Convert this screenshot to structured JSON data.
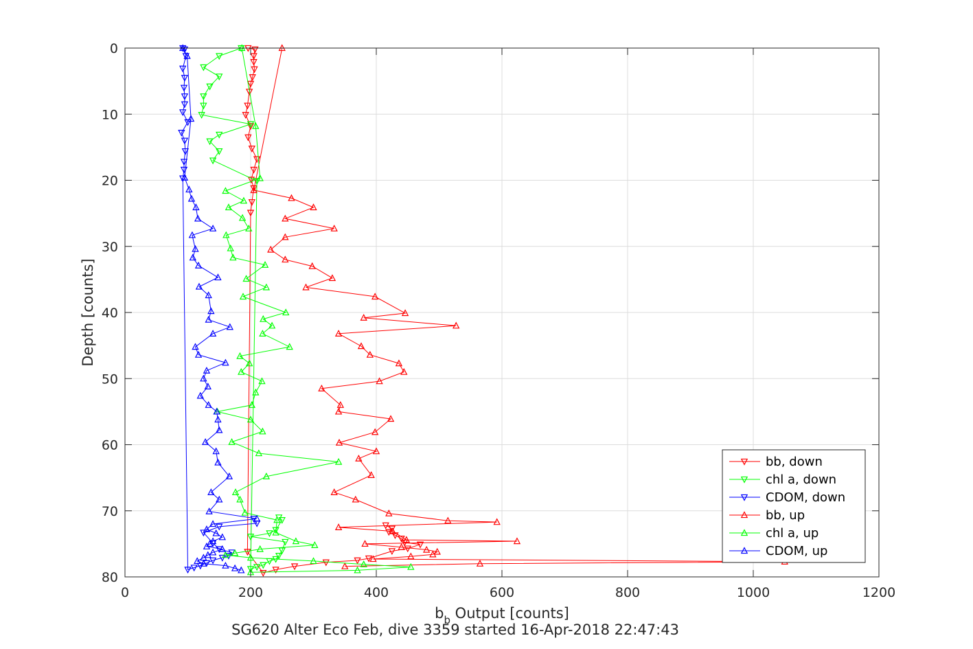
{
  "chart_data": {
    "type": "line",
    "xlabel_main": "b",
    "xlabel_sub": "b",
    "xlabel_rest": " Output [counts]",
    "ylabel": "Depth [counts]",
    "subtitle": "SG620 Alter Eco Feb, dive 3359 started 16-Apr-2018 22:47:43",
    "xlim": [
      0,
      1200
    ],
    "ylim": [
      0,
      80
    ],
    "y_reversed": true,
    "grid": true,
    "legend_position": "bottom-right",
    "xticks": [
      "0",
      "200",
      "400",
      "600",
      "800",
      "1000",
      "1200"
    ],
    "yticks": [
      "0",
      "10",
      "20",
      "30",
      "40",
      "50",
      "60",
      "70",
      "80"
    ],
    "series": [
      {
        "name": "bb, down",
        "color": "#ff0000",
        "marker": "triangle-down",
        "points": [
          [
            196,
            0
          ],
          [
            207,
            0.2
          ],
          [
            205,
            1.2
          ],
          [
            205,
            2.1
          ],
          [
            206,
            3.2
          ],
          [
            203,
            4.4
          ],
          [
            200,
            5.4
          ],
          [
            198,
            6.6
          ],
          [
            195,
            8.7
          ],
          [
            192,
            10.1
          ],
          [
            200,
            11.8
          ],
          [
            196,
            13.5
          ],
          [
            202,
            15.2
          ],
          [
            210,
            16.8
          ],
          [
            205,
            18.4
          ],
          [
            201,
            19.9
          ],
          [
            205,
            21.2
          ],
          [
            202,
            23.3
          ],
          [
            200,
            24.9
          ],
          [
            195,
            76.2
          ],
          [
            220,
            79.4
          ],
          [
            240,
            78.9
          ],
          [
            270,
            78.4
          ],
          [
            320,
            77.8
          ],
          [
            370,
            77.5
          ],
          [
            388,
            77.2
          ],
          [
            425,
            76.1
          ],
          [
            450,
            75.7
          ],
          [
            470,
            75.1
          ],
          [
            445,
            74.8
          ],
          [
            440,
            74.2
          ],
          [
            430,
            73.7
          ],
          [
            420,
            73.2
          ],
          [
            425,
            72.7
          ],
          [
            415,
            72.2
          ]
        ]
      },
      {
        "name": "chl a, down",
        "color": "#00ff00",
        "marker": "triangle-down",
        "points": [
          [
            185,
            0
          ],
          [
            150,
            1.2
          ],
          [
            125,
            2.9
          ],
          [
            150,
            4.3
          ],
          [
            135,
            5.8
          ],
          [
            125,
            7.3
          ],
          [
            125,
            8.7
          ],
          [
            122,
            10.1
          ],
          [
            200,
            11.5
          ],
          [
            150,
            13.1
          ],
          [
            135,
            14.1
          ],
          [
            150,
            15.6
          ],
          [
            140,
            17.0
          ],
          [
            210,
            20.1
          ],
          [
            200,
            78.8
          ],
          [
            210,
            78.5
          ],
          [
            220,
            78.2
          ],
          [
            230,
            77.6
          ],
          [
            240,
            77.3
          ],
          [
            245,
            76.8
          ],
          [
            250,
            76.0
          ],
          [
            255,
            74.7
          ],
          [
            200,
            73.9
          ],
          [
            230,
            73.4
          ],
          [
            240,
            72.9
          ],
          [
            250,
            71.4
          ],
          [
            245,
            71.0
          ]
        ]
      },
      {
        "name": "CDOM, down",
        "color": "#0000ff",
        "marker": "triangle-down",
        "points": [
          [
            92,
            0
          ],
          [
            95,
            0.2
          ],
          [
            97,
            1.2
          ],
          [
            92,
            3.1
          ],
          [
            95,
            4.5
          ],
          [
            94,
            6.0
          ],
          [
            95,
            7.3
          ],
          [
            95,
            8.5
          ],
          [
            92,
            9.7
          ],
          [
            100,
            11.2
          ],
          [
            90,
            12.8
          ],
          [
            95,
            14.0
          ],
          [
            96,
            15.6
          ],
          [
            94,
            17.2
          ],
          [
            94,
            18.4
          ],
          [
            92,
            19.7
          ],
          [
            100,
            78.9
          ],
          [
            110,
            78.6
          ],
          [
            120,
            78.3
          ],
          [
            130,
            77.9
          ],
          [
            140,
            77.5
          ],
          [
            155,
            77.1
          ],
          [
            165,
            76.8
          ],
          [
            170,
            76.3
          ],
          [
            150,
            75.8
          ],
          [
            140,
            74.9
          ],
          [
            125,
            73.3
          ],
          [
            150,
            72.4
          ],
          [
            210,
            71.9
          ],
          [
            205,
            71.2
          ]
        ]
      },
      {
        "name": "bb, up",
        "color": "#ff0000",
        "marker": "triangle-up",
        "points": [
          [
            250,
            0
          ],
          [
            205,
            21.5
          ],
          [
            265,
            22.7
          ],
          [
            300,
            24.1
          ],
          [
            255,
            25.8
          ],
          [
            333,
            27.3
          ],
          [
            255,
            28.6
          ],
          [
            232,
            30.5
          ],
          [
            255,
            32.0
          ],
          [
            298,
            33.0
          ],
          [
            330,
            34.8
          ],
          [
            288,
            36.2
          ],
          [
            398,
            37.6
          ],
          [
            446,
            40.1
          ],
          [
            380,
            40.8
          ],
          [
            527,
            42.0
          ],
          [
            340,
            43.2
          ],
          [
            376,
            45.1
          ],
          [
            390,
            46.4
          ],
          [
            436,
            47.7
          ],
          [
            444,
            49.0
          ],
          [
            405,
            50.4
          ],
          [
            313,
            51.5
          ],
          [
            343,
            54.0
          ],
          [
            340,
            55.0
          ],
          [
            423,
            56.1
          ],
          [
            398,
            58.1
          ],
          [
            341,
            59.7
          ],
          [
            400,
            61.0
          ],
          [
            372,
            62.1
          ],
          [
            392,
            64.6
          ],
          [
            333,
            67.2
          ],
          [
            367,
            68.3
          ],
          [
            420,
            70.4
          ],
          [
            514,
            71.5
          ],
          [
            592,
            71.7
          ],
          [
            340,
            72.5
          ],
          [
            426,
            73.1
          ],
          [
            448,
            74.4
          ],
          [
            624,
            74.6
          ],
          [
            382,
            75.0
          ],
          [
            440,
            75.5
          ],
          [
            480,
            75.9
          ],
          [
            497,
            76.2
          ],
          [
            490,
            76.6
          ],
          [
            455,
            76.9
          ],
          [
            395,
            77.3
          ],
          [
            1050,
            77.7
          ],
          [
            565,
            78.0
          ],
          [
            350,
            78.4
          ]
        ]
      },
      {
        "name": "chl a, up",
        "color": "#00ff00",
        "marker": "triangle-up",
        "points": [
          [
            186,
            0
          ],
          [
            208,
            11.8
          ],
          [
            215,
            19.7
          ],
          [
            160,
            21.6
          ],
          [
            189,
            23.1
          ],
          [
            165,
            24.1
          ],
          [
            187,
            25.7
          ],
          [
            197,
            27.3
          ],
          [
            161,
            28.3
          ],
          [
            168,
            30.3
          ],
          [
            172,
            31.7
          ],
          [
            223,
            32.8
          ],
          [
            193,
            34.9
          ],
          [
            225,
            36.2
          ],
          [
            188,
            37.6
          ],
          [
            256,
            40.0
          ],
          [
            220,
            41.0
          ],
          [
            234,
            42.0
          ],
          [
            219,
            43.2
          ],
          [
            262,
            45.2
          ],
          [
            183,
            46.6
          ],
          [
            198,
            47.7
          ],
          [
            185,
            49.0
          ],
          [
            218,
            50.4
          ],
          [
            208,
            52.1
          ],
          [
            202,
            54.0
          ],
          [
            147,
            55.0
          ],
          [
            200,
            56.2
          ],
          [
            219,
            58.0
          ],
          [
            170,
            59.6
          ],
          [
            213,
            61.3
          ],
          [
            340,
            62.6
          ],
          [
            225,
            64.8
          ],
          [
            176,
            67.2
          ],
          [
            183,
            68.3
          ],
          [
            191,
            70.3
          ],
          [
            242,
            71.4
          ],
          [
            240,
            73.3
          ],
          [
            272,
            74.6
          ],
          [
            302,
            75.2
          ],
          [
            215,
            75.8
          ],
          [
            175,
            76.4
          ],
          [
            160,
            76.7
          ],
          [
            200,
            77.1
          ],
          [
            300,
            77.6
          ],
          [
            380,
            78.1
          ],
          [
            455,
            78.5
          ],
          [
            370,
            79.0
          ],
          [
            200,
            79.3
          ]
        ]
      },
      {
        "name": "CDOM, up",
        "color": "#0000ff",
        "marker": "triangle-up",
        "points": [
          [
            92,
            0
          ],
          [
            99,
            1.2
          ],
          [
            105,
            10.7
          ],
          [
            95,
            19.6
          ],
          [
            102,
            21.4
          ],
          [
            106,
            22.8
          ],
          [
            113,
            24.1
          ],
          [
            116,
            25.8
          ],
          [
            140,
            27.3
          ],
          [
            107,
            28.3
          ],
          [
            112,
            30.4
          ],
          [
            108,
            31.7
          ],
          [
            117,
            32.9
          ],
          [
            148,
            34.7
          ],
          [
            118,
            36.1
          ],
          [
            133,
            37.4
          ],
          [
            137,
            39.8
          ],
          [
            133,
            41.1
          ],
          [
            167,
            42.2
          ],
          [
            140,
            43.2
          ],
          [
            112,
            45.2
          ],
          [
            117,
            46.4
          ],
          [
            160,
            47.6
          ],
          [
            130,
            48.8
          ],
          [
            125,
            50.0
          ],
          [
            132,
            51.2
          ],
          [
            120,
            52.6
          ],
          [
            133,
            54.0
          ],
          [
            146,
            55.0
          ],
          [
            148,
            56.2
          ],
          [
            150,
            57.8
          ],
          [
            128,
            59.6
          ],
          [
            145,
            61.0
          ],
          [
            148,
            62.7
          ],
          [
            166,
            64.8
          ],
          [
            137,
            67.2
          ],
          [
            150,
            68.3
          ],
          [
            134,
            70.1
          ],
          [
            210,
            71.2
          ],
          [
            140,
            72.0
          ],
          [
            130,
            72.8
          ],
          [
            145,
            73.4
          ],
          [
            155,
            74.0
          ],
          [
            140,
            74.6
          ],
          [
            135,
            75.0
          ],
          [
            130,
            75.4
          ],
          [
            155,
            75.8
          ],
          [
            140,
            76.3
          ],
          [
            132,
            76.7
          ],
          [
            125,
            77.1
          ],
          [
            115,
            77.6
          ],
          [
            125,
            78.0
          ],
          [
            160,
            78.3
          ],
          [
            175,
            78.7
          ],
          [
            185,
            79.0
          ]
        ]
      }
    ]
  }
}
